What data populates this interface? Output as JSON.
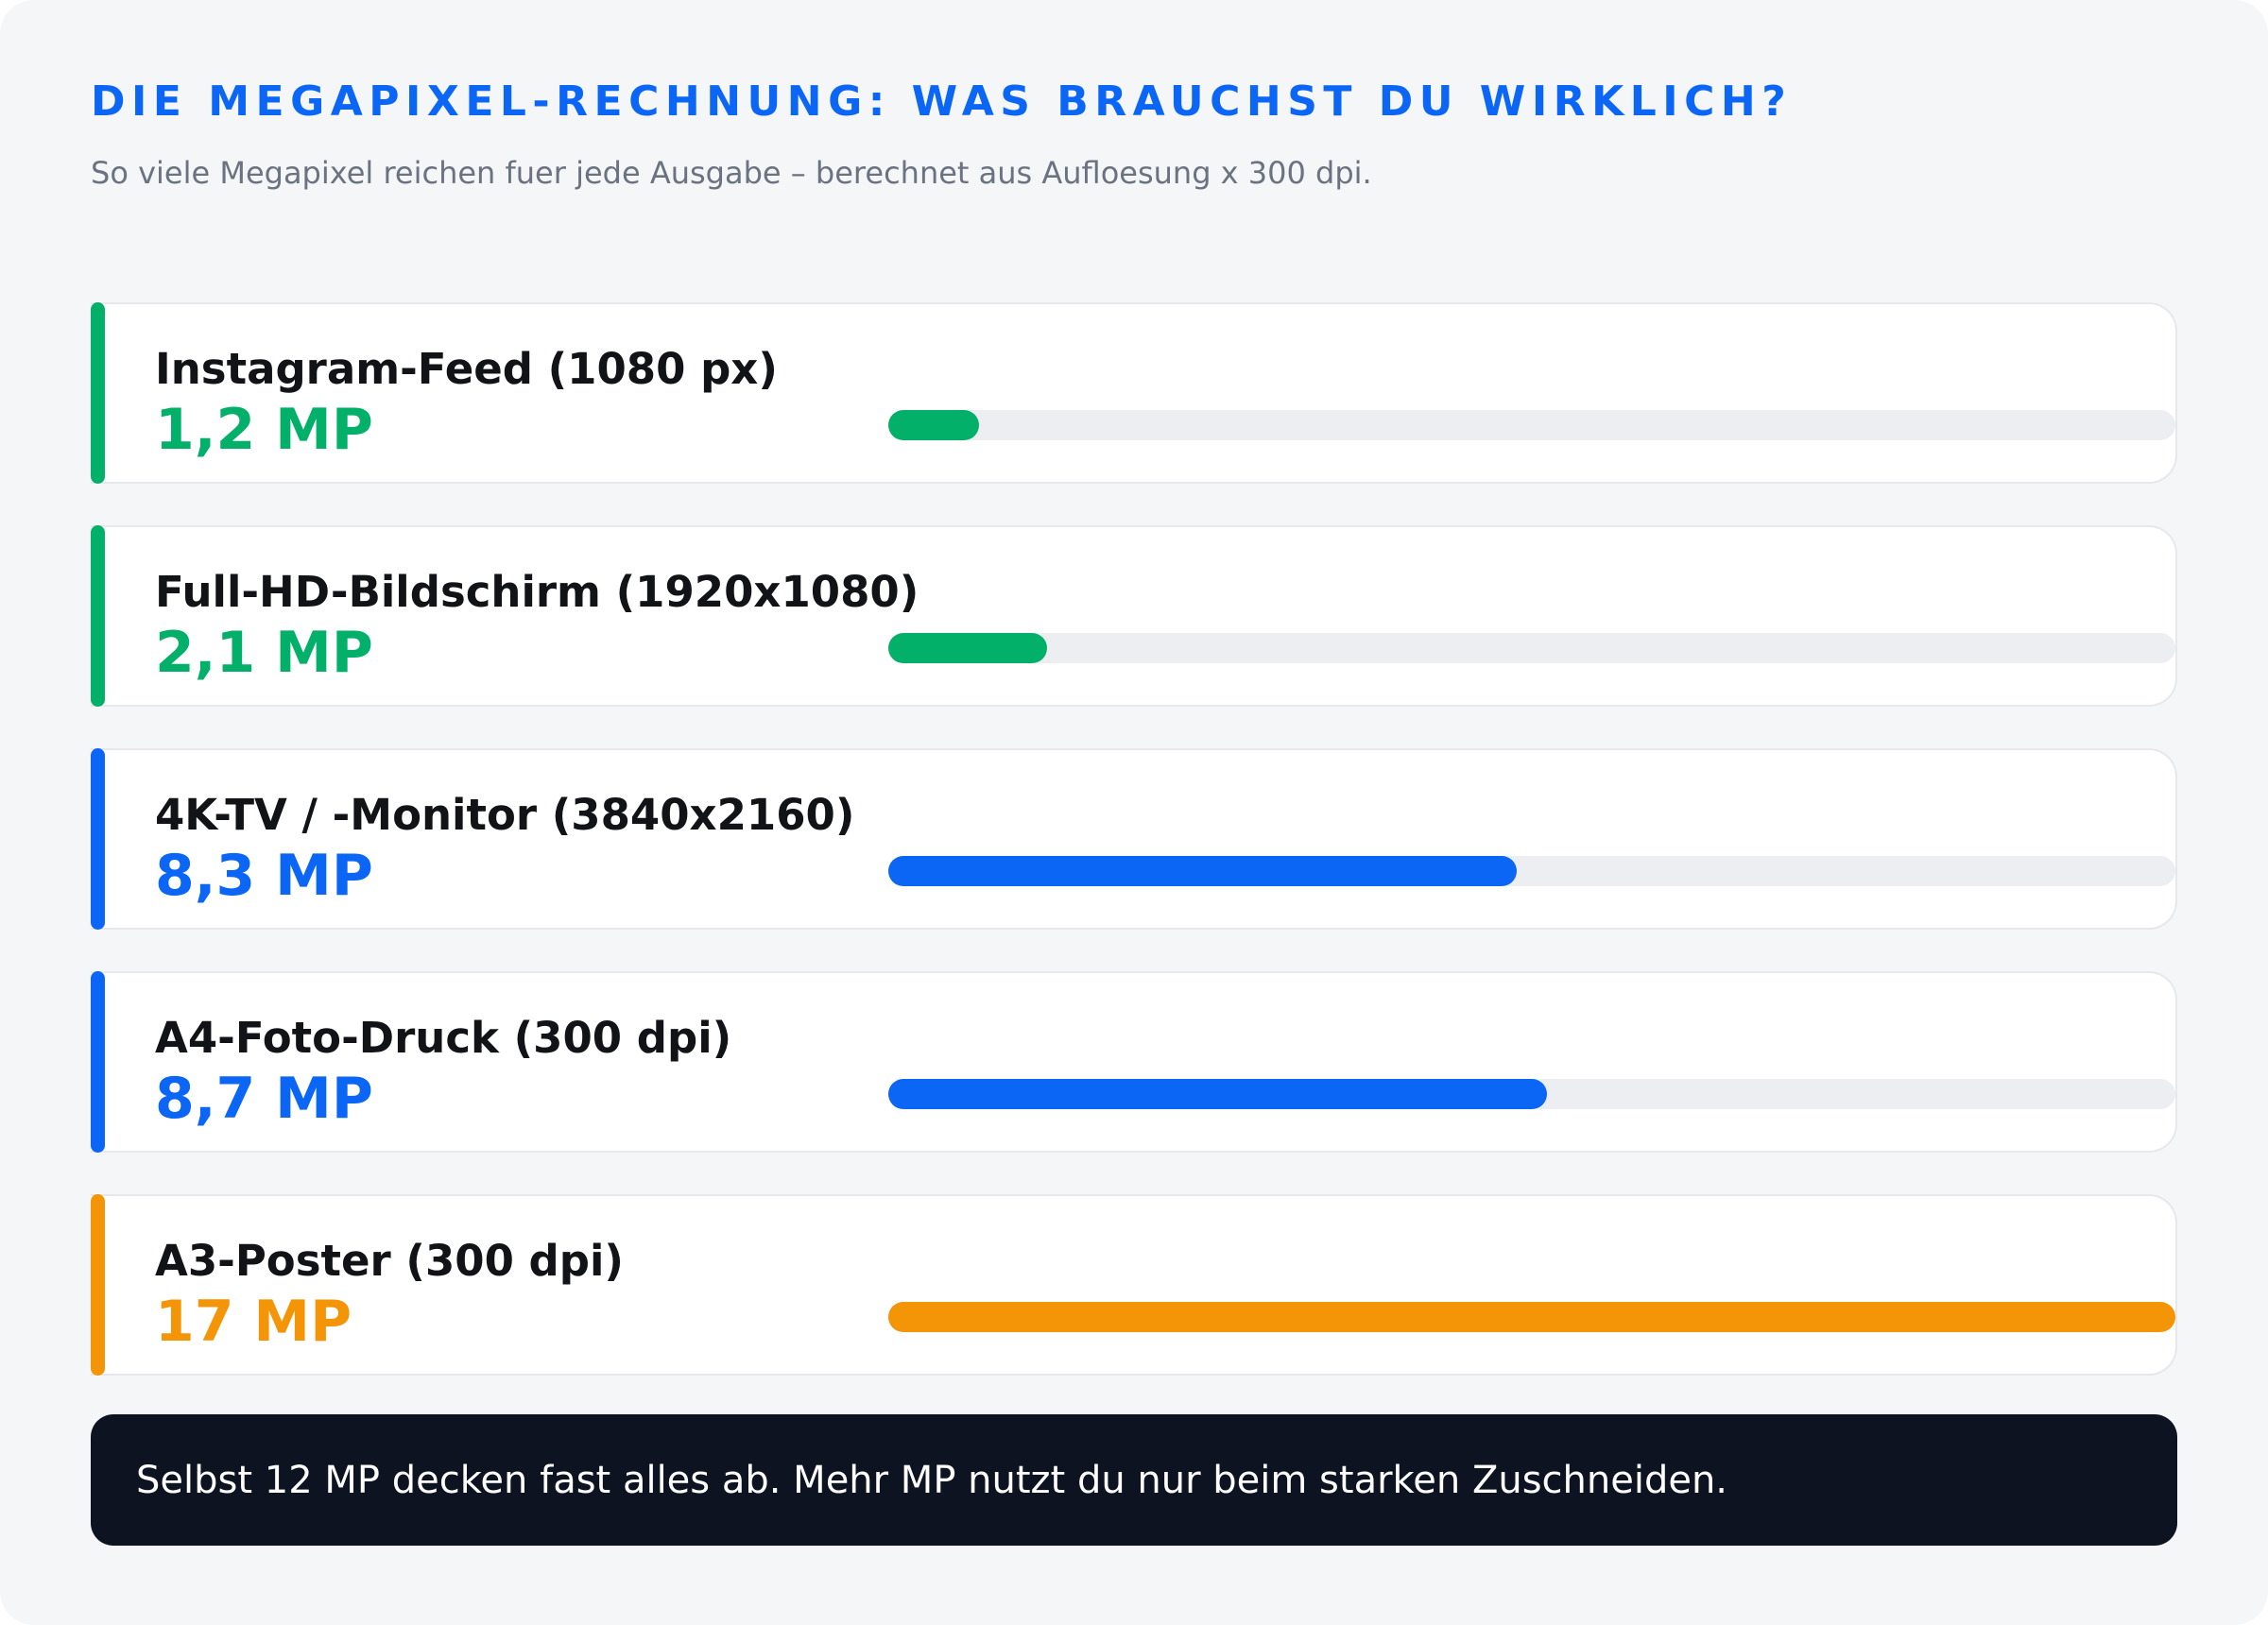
{
  "header": {
    "title": "DIE MEGAPIXEL-RECHNUNG: WAS BRAUCHST DU WIRKLICH?",
    "subtitle": "So viele Megapixel reichen fuer jede Ausgabe – berechnet aus Aufloesung x 300 dpi."
  },
  "colors": {
    "green": "#03b06a",
    "blue": "#0b66f5",
    "orange": "#f39507",
    "track": "#eceef2"
  },
  "chart_data": {
    "type": "bar",
    "orientation": "horizontal",
    "title": "DIE MEGAPIXEL-RECHNUNG: WAS BRAUCHST DU WIRKLICH?",
    "subtitle": "So viele Megapixel reichen fuer jede Ausgabe – berechnet aus Aufloesung x 300 dpi.",
    "unit": "MP",
    "xlim": [
      0,
      17
    ],
    "categories": [
      "Instagram-Feed (1080 px)",
      "Full-HD-Bildschirm (1920x1080)",
      "4K-TV / -Monitor (3840x2160)",
      "A4-Foto-Druck (300 dpi)",
      "A3-Poster (300 dpi)"
    ],
    "values": [
      1.2,
      2.1,
      8.3,
      8.7,
      17
    ],
    "value_labels": [
      "1,2 MP",
      "2,1 MP",
      "8,3 MP",
      "8,7 MP",
      "17 MP"
    ],
    "bar_colors": [
      "#03b06a",
      "#03b06a",
      "#0b66f5",
      "#0b66f5",
      "#f39507"
    ],
    "grid": false,
    "legend": "none"
  },
  "note": {
    "text": "Selbst 12 MP decken fast alles ab. Mehr MP nutzt du nur beim starken Zuschneiden."
  }
}
